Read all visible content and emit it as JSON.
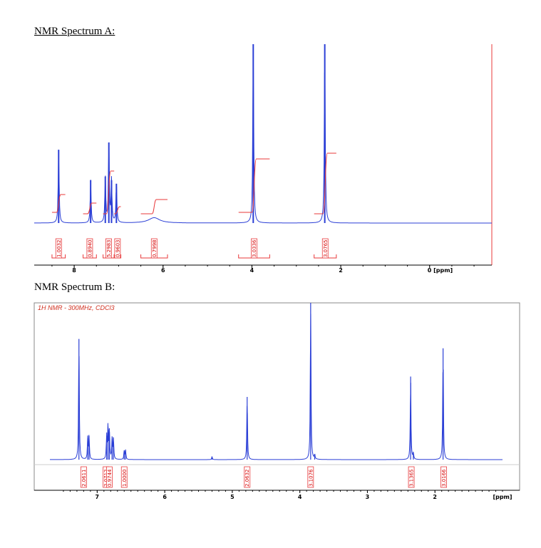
{
  "headings": {
    "a": "NMR Spectrum A:",
    "b": "NMR Spectrum B:"
  },
  "colors": {
    "spectrum": "#2b3fd6",
    "integral": "#e8383a",
    "axis": "#000000",
    "frame": "#8a8a8a",
    "red_border": "#e8383a"
  },
  "chart_data": [
    {
      "type": "line",
      "title": "NMR Spectrum A:",
      "xlabel": "[ppm]",
      "x_reversed": true,
      "xlim": [
        8.9,
        -1.4
      ],
      "x_ticks": [
        {
          "value": 8,
          "label": "8"
        },
        {
          "value": 6,
          "label": "6"
        },
        {
          "value": 4,
          "label": "4"
        },
        {
          "value": 2,
          "label": "2"
        },
        {
          "value": 0,
          "label": "0 [ppm]"
        }
      ],
      "peaks": [
        {
          "ppm": 8.35,
          "height": 0.41
        },
        {
          "ppm": 7.63,
          "height": 0.24
        },
        {
          "ppm": 7.3,
          "height": 0.26
        },
        {
          "ppm": 7.22,
          "height": 0.45
        },
        {
          "ppm": 7.16,
          "height": 0.24
        },
        {
          "ppm": 7.05,
          "height": 0.22
        },
        {
          "ppm": 6.2,
          "height": 0.03
        },
        {
          "ppm": 3.97,
          "height": 1.0
        },
        {
          "ppm": 2.36,
          "height": 1.0
        }
      ],
      "integrals": [
        {
          "value": "1.0032",
          "from": 8.5,
          "to": 8.2
        },
        {
          "value": "0.8940",
          "from": 7.8,
          "to": 7.5
        },
        {
          "value": "5.2983",
          "from": 7.35,
          "to": 7.1
        },
        {
          "value": "0.9603",
          "from": 7.1,
          "to": 6.95
        },
        {
          "value": "0.7998",
          "from": 6.5,
          "to": 5.9
        },
        {
          "value": "3.0336",
          "from": 4.3,
          "to": 3.6
        },
        {
          "value": "3.0765",
          "from": 2.6,
          "to": 2.1
        }
      ]
    },
    {
      "type": "line",
      "title": "NMR Spectrum B:",
      "subtitle": "1H NMR - 300MHz, CDCl3",
      "xlabel": "[ppm]",
      "x_reversed": true,
      "xlim": [
        7.7,
        1.0
      ],
      "x_ticks": [
        {
          "value": 7,
          "label": "7"
        },
        {
          "value": 6,
          "label": "6"
        },
        {
          "value": 5,
          "label": "5"
        },
        {
          "value": 4,
          "label": "4"
        },
        {
          "value": 3,
          "label": "3"
        },
        {
          "value": 2,
          "label": "2"
        },
        {
          "value": 1,
          "label": "[ppm]"
        }
      ],
      "peaks": [
        {
          "ppm": 7.27,
          "height": 0.77
        },
        {
          "ppm": 7.14,
          "height": 0.14
        },
        {
          "ppm": 7.12,
          "height": 0.15
        },
        {
          "ppm": 6.86,
          "height": 0.15
        },
        {
          "ppm": 6.84,
          "height": 0.21
        },
        {
          "ppm": 6.82,
          "height": 0.2
        },
        {
          "ppm": 6.78,
          "height": 0.13
        },
        {
          "ppm": 6.76,
          "height": 0.14
        },
        {
          "ppm": 6.6,
          "height": 0.06
        },
        {
          "ppm": 6.58,
          "height": 0.06
        },
        {
          "ppm": 5.3,
          "height": 0.02
        },
        {
          "ppm": 4.78,
          "height": 0.4
        },
        {
          "ppm": 3.84,
          "height": 1.0
        },
        {
          "ppm": 3.78,
          "height": 0.03
        },
        {
          "ppm": 2.36,
          "height": 0.53
        },
        {
          "ppm": 2.32,
          "height": 0.04
        },
        {
          "ppm": 1.88,
          "height": 0.71
        }
      ],
      "integrals": [
        {
          "value": "2.0611",
          "ppm": 7.2
        },
        {
          "value": "2.0712",
          "ppm": 6.87
        },
        {
          "value": "0.9744",
          "ppm": 6.82
        },
        {
          "value": "1.0000",
          "ppm": 6.6
        },
        {
          "value": "2.0632",
          "ppm": 4.78
        },
        {
          "value": "3.1076",
          "ppm": 3.84
        },
        {
          "value": "3.1365",
          "ppm": 2.35
        },
        {
          "value": "3.0166",
          "ppm": 1.87
        }
      ]
    }
  ]
}
